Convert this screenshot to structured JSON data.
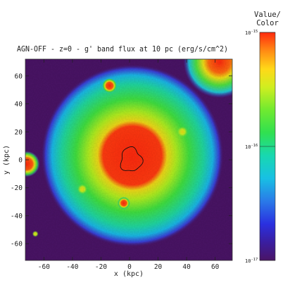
{
  "chart_data": {
    "type": "heatmap",
    "title": "AGN-OFF - z=0 - g' band flux at 10 pc (erg/s/cm^2)",
    "xlabel": "x (kpc)",
    "ylabel": "y (kpc)",
    "xlim": [
      -73,
      72
    ],
    "ylim": [
      -72,
      72
    ],
    "x_ticks": [
      -60,
      -40,
      -20,
      0,
      20,
      40,
      60
    ],
    "y_ticks": [
      -60,
      -40,
      -20,
      0,
      20,
      40,
      60
    ],
    "x_tick_labels": [
      "-60",
      "-40",
      "-20",
      "0",
      "20",
      "40",
      "60"
    ],
    "y_tick_labels": [
      "-60",
      "-40",
      "-20",
      "0",
      "20",
      "40",
      "60"
    ],
    "colorbar": {
      "title_line1": "Value/",
      "title_line2": "Color",
      "scale": "log",
      "range": [
        1e-17,
        1e-15
      ],
      "ticks": [
        {
          "value": 1e-15,
          "mantissa": "10",
          "exponent": "-15"
        },
        {
          "value": 1e-16,
          "mantissa": "10",
          "exponent": "-16"
        },
        {
          "value": 1e-17,
          "mantissa": "10",
          "exponent": "-17"
        }
      ]
    },
    "colors": {
      "background": "#4a1466",
      "low": "#3c2bd6",
      "mid_low": "#19c8e0",
      "mid": "#38e03a",
      "mid_high": "#e6ee1e",
      "high": "#ff2e0e"
    },
    "main_galaxy": {
      "center": [
        2,
        3
      ],
      "radius_kpc": 64
    },
    "contour": {
      "center": [
        1,
        0
      ],
      "radius_kpc": 8
    },
    "satellites": [
      {
        "x": -14,
        "y": 53,
        "radius_kpc": 3
      },
      {
        "x": -72,
        "y": -3,
        "radius_kpc": 5
      },
      {
        "x": 63,
        "y": 70,
        "radius_kpc": 14
      },
      {
        "x": 37,
        "y": 20,
        "radius_kpc": 2.2
      },
      {
        "x": -33,
        "y": -21,
        "radius_kpc": 2
      },
      {
        "x": -4,
        "y": -31,
        "radius_kpc": 2.5
      },
      {
        "x": -66,
        "y": -53,
        "radius_kpc": 1.2
      }
    ]
  }
}
